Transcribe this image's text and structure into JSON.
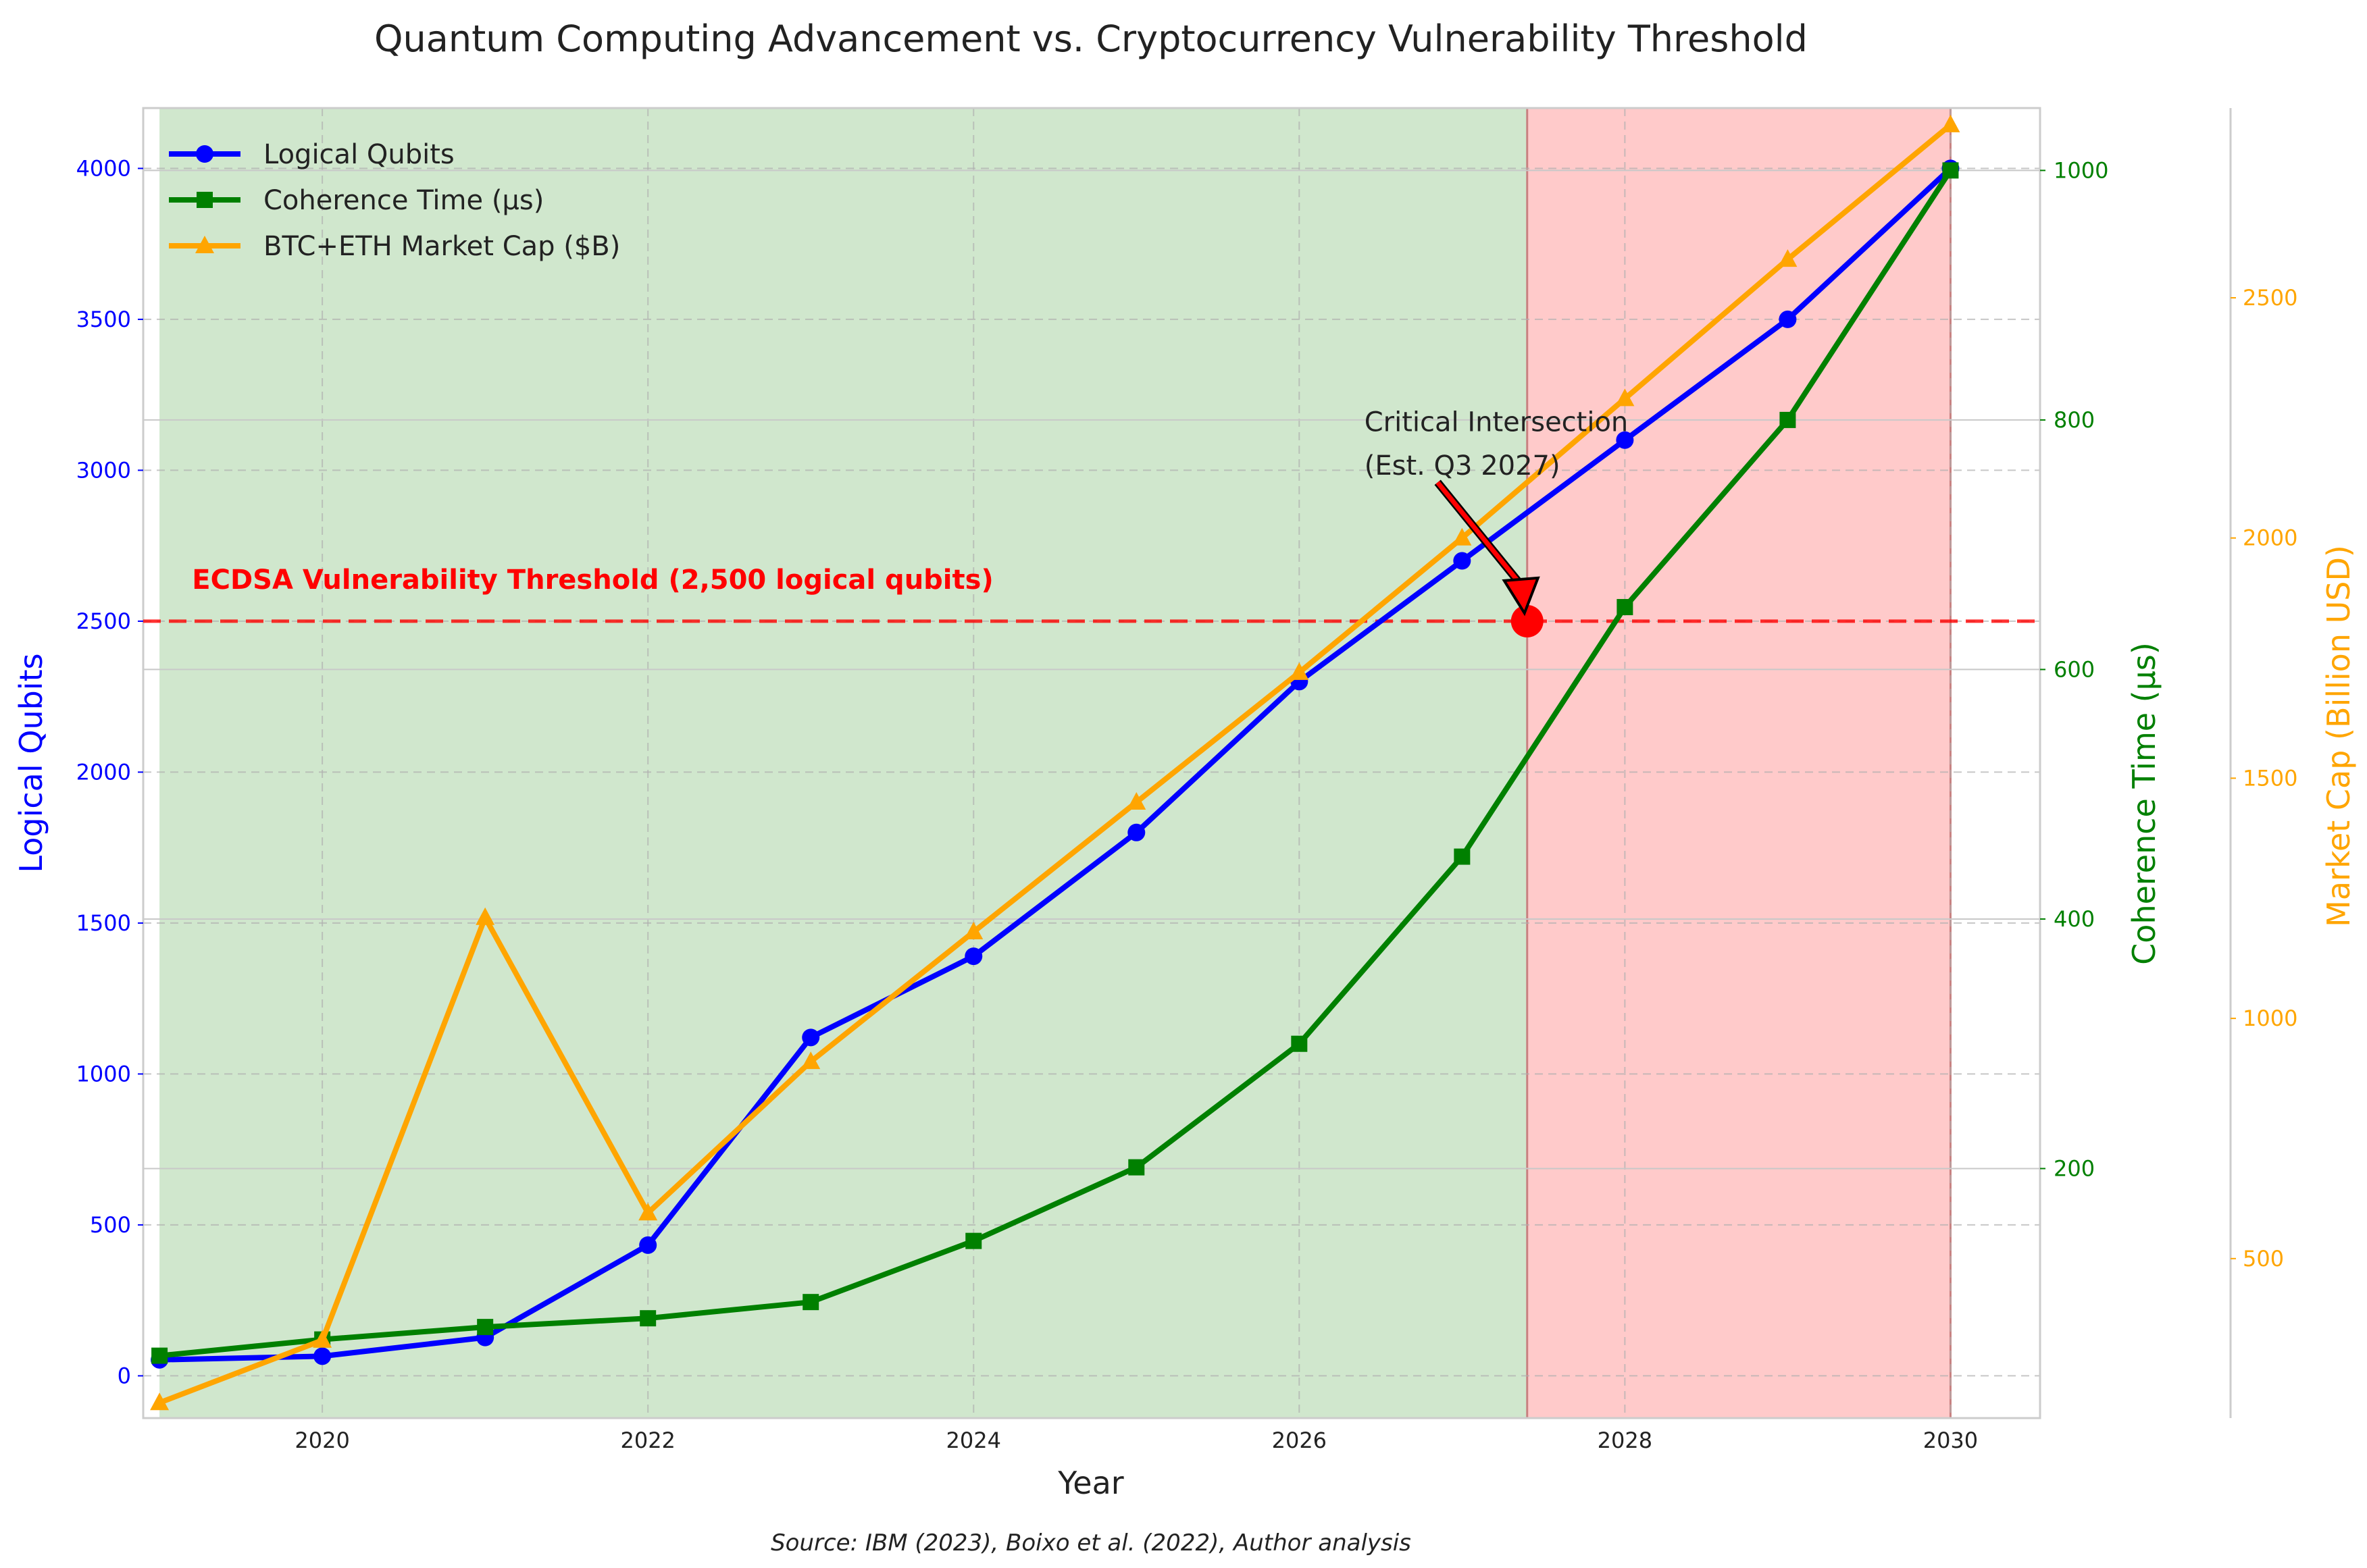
{
  "chart_data": {
    "type": "line",
    "title": "Quantum Computing Advancement vs. Cryptocurrency Vulnerability Threshold",
    "xlabel": "Year",
    "xlim": [
      2018.9,
      2030.55
    ],
    "xticks": [
      2020,
      2022,
      2024,
      2026,
      2028,
      2030
    ],
    "axes": {
      "left": {
        "label": "Logical Qubits",
        "color": "#0000ff",
        "ylim": [
          -140,
          4200
        ],
        "ticks": [
          0,
          500,
          1000,
          1500,
          2000,
          2500,
          3000,
          3500,
          4000
        ]
      },
      "right1": {
        "label": "Coherence Time (μs)",
        "color": "#008000",
        "ylim": [
          0,
          1050
        ],
        "ticks": [
          200,
          400,
          600,
          800,
          1000
        ]
      },
      "right2": {
        "label": "Market Cap (Billion USD)",
        "color": "#ffa500",
        "ylim": [
          168,
          2895
        ],
        "ticks": [
          500,
          1000,
          1500,
          2000,
          2500
        ]
      }
    },
    "series": [
      {
        "name": "Logical Qubits",
        "axis": "left",
        "color": "#0000ff",
        "marker": "circle",
        "x": [
          2019,
          2020,
          2021,
          2022,
          2023,
          2024,
          2025,
          2026,
          2027,
          2028,
          2029,
          2030
        ],
        "values": [
          53,
          65,
          127,
          433,
          1121,
          1390,
          1800,
          2300,
          2700,
          3100,
          3500,
          4000
        ]
      },
      {
        "name": "Coherence Time (μs)",
        "axis": "right1",
        "color": "#008000",
        "marker": "square",
        "x": [
          2019,
          2020,
          2021,
          2022,
          2023,
          2024,
          2025,
          2026,
          2027,
          2028,
          2029,
          2030
        ],
        "values": [
          50,
          63,
          73,
          80,
          93,
          142,
          201,
          300,
          450,
          650,
          800,
          1000
        ]
      },
      {
        "name": "BTC+ETH Market Cap ($B)",
        "axis": "right2",
        "color": "#ffa500",
        "marker": "triangle",
        "x": [
          2019,
          2020,
          2021,
          2022,
          2023,
          2024,
          2025,
          2026,
          2027,
          2028,
          2029,
          2030
        ],
        "values": [
          200,
          330,
          1210,
          595,
          910,
          1180,
          1450,
          1720,
          2000,
          2290,
          2580,
          2860
        ]
      }
    ],
    "regions": [
      {
        "name": "safe-region",
        "x0": 2019,
        "x1": 2027.4,
        "color": "#d0e7cd"
      },
      {
        "name": "vulnerable-region",
        "x0": 2027.4,
        "x1": 2030,
        "color": "#ffcaca"
      }
    ],
    "threshold": {
      "value": 2500,
      "label": "ECDSA Vulnerability Threshold (2,500 logical qubits)",
      "color": "#ff0000"
    },
    "annotation": {
      "text_line1": "Critical Intersection",
      "text_line2": "(Est. Q3 2027)",
      "x": 2027.4,
      "y": 2500,
      "text_x": 2026.4,
      "text_y": 2900
    },
    "source": "Source: IBM (2023), Boixo et al. (2022), Author analysis"
  }
}
